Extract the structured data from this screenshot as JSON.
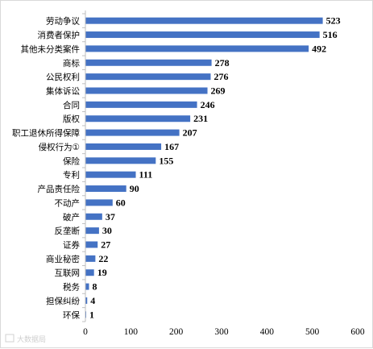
{
  "chart_data": {
    "type": "bar",
    "orientation": "horizontal",
    "title": "",
    "xlabel": "",
    "ylabel": "",
    "xlim": [
      0,
      600
    ],
    "xticks": [
      0,
      100,
      200,
      300,
      400,
      500,
      600
    ],
    "grid": false,
    "legend": "none",
    "bar_color": "#4472c4",
    "categories": [
      "劳动争议",
      "消费者保护",
      "其他未分类案件",
      "商标",
      "公民权利",
      "集体诉讼",
      "合同",
      "版权",
      "职工退休所得保障",
      "侵权行为①",
      "保险",
      "专利",
      "产品责任险",
      "不动产",
      "破产",
      "反垄断",
      "证券",
      "商业秘密",
      "互联网",
      "税务",
      "担保纠纷",
      "环保"
    ],
    "values": [
      523,
      516,
      492,
      278,
      276,
      269,
      246,
      231,
      207,
      167,
      155,
      111,
      90,
      60,
      37,
      30,
      27,
      22,
      19,
      8,
      4,
      1
    ]
  },
  "watermark": "大数据局"
}
